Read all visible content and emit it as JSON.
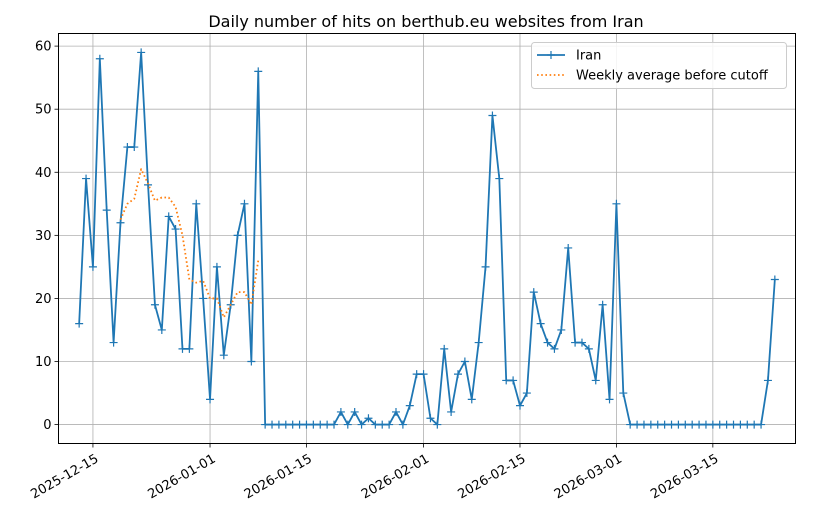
{
  "chart_data": {
    "type": "line",
    "title": "Daily number of hits on berthub.eu websites from Iran",
    "xlabel": "",
    "ylabel": "",
    "x_start": "2025-12-13",
    "xlim": [
      "2025-12-10",
      "2026-03-27"
    ],
    "ylim": [
      -3,
      62
    ],
    "grid": true,
    "legend_position": "top-right",
    "x_ticks": [
      "2025-12-15",
      "2026-01-01",
      "2026-01-15",
      "2026-02-01",
      "2026-02-15",
      "2026-03-01",
      "2026-03-15"
    ],
    "y_ticks": [
      0,
      10,
      20,
      30,
      40,
      50,
      60
    ],
    "series": [
      {
        "name": "Iran",
        "color": "#1f77b4",
        "style": "solid",
        "marker": "+",
        "start": "2025-12-13",
        "values": [
          16,
          39,
          25,
          58,
          34,
          13,
          32,
          44,
          44,
          59,
          38,
          19,
          15,
          33,
          31,
          12,
          12,
          35,
          20,
          4,
          25,
          11,
          19,
          30,
          35,
          10,
          56,
          0,
          0,
          0,
          0,
          0,
          0,
          0,
          0,
          0,
          0,
          0,
          2,
          0,
          2,
          0,
          1,
          0,
          0,
          0,
          2,
          0,
          3,
          8,
          8,
          1,
          0,
          12,
          2,
          8,
          10,
          4,
          13,
          25,
          49,
          39,
          7,
          7,
          3,
          5,
          21,
          16,
          13,
          12,
          15,
          28,
          13,
          13,
          12,
          7,
          19,
          4,
          35,
          5,
          0,
          0,
          0,
          0,
          0,
          0,
          0,
          0,
          0,
          0,
          0,
          0,
          0,
          0,
          0,
          0,
          0,
          0,
          0,
          0,
          7,
          23
        ]
      },
      {
        "name": "Weekly average before cutoff",
        "color": "#ff7f0e",
        "style": "dotted",
        "start": "2025-12-19",
        "values": [
          32.5,
          35,
          35.8,
          40.5,
          38.2,
          35.5,
          36,
          36,
          34.5,
          30,
          23,
          22.5,
          22.8,
          20,
          20,
          17,
          19,
          21,
          21,
          19,
          26
        ]
      }
    ]
  }
}
